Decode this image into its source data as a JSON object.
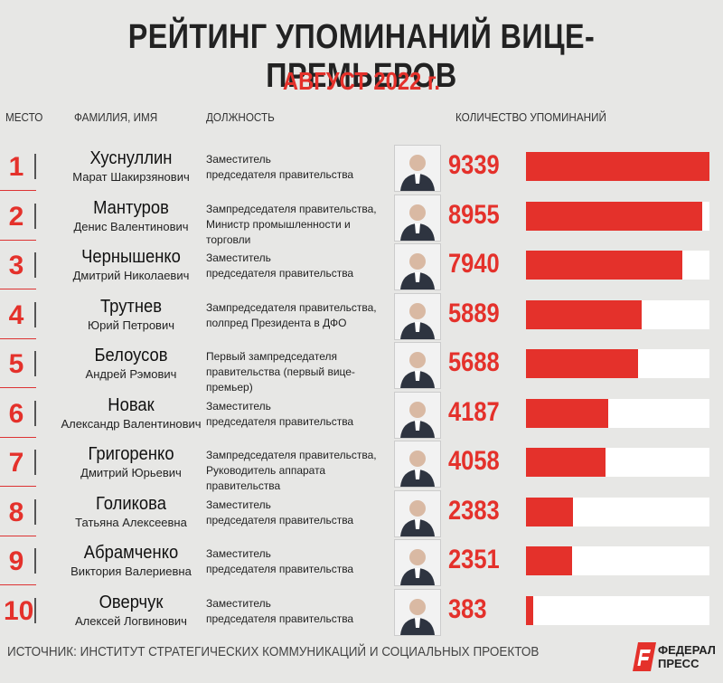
{
  "header": {
    "title": "РЕЙТИНГ УПОМИНАНИЙ ВИЦЕ-ПРЕМЬЕРОВ",
    "subtitle": "АВГУСТ 2022 г."
  },
  "columns": {
    "rank": "МЕСТО",
    "name": "ФАМИЛИЯ, ИМЯ",
    "position": "ДОЛЖНОСТЬ",
    "count": "КОЛИЧЕСТВО УПОМИНАНИЙ"
  },
  "colors": {
    "accent": "#e4312b",
    "background": "#e7e7e5",
    "bar_track": "#ffffff"
  },
  "chart_data": {
    "type": "bar",
    "orientation": "horizontal",
    "title": "РЕЙТИНГ УПОМИНАНИЙ ВИЦЕ-ПРЕМЬЕРОВ",
    "subtitle": "АВГУСТ 2022 г.",
    "xlabel": "КОЛИЧЕСТВО УПОМИНАНИЙ",
    "xlim": [
      0,
      9339
    ],
    "rows": [
      {
        "rank": "1",
        "surname": "Хуснуллин",
        "fullname": "Марат Шакирзянович",
        "position": [
          "Заместитель",
          "председателя правительства"
        ],
        "value": 9339
      },
      {
        "rank": "2",
        "surname": "Мантуров",
        "fullname": "Денис Валентинович",
        "position": [
          "Зампредседателя правительства,",
          "Министр промышленности и торговли"
        ],
        "value": 8955
      },
      {
        "rank": "3",
        "surname": "Чернышенко",
        "fullname": "Дмитрий Николаевич",
        "position": [
          "Заместитель",
          "председателя правительства"
        ],
        "value": 7940
      },
      {
        "rank": "4",
        "surname": "Трутнев",
        "fullname": "Юрий Петрович",
        "position": [
          "Зампредседателя правительства,",
          "полпред Президента в ДФО"
        ],
        "value": 5889
      },
      {
        "rank": "5",
        "surname": "Белоусов",
        "fullname": "Андрей Рэмович",
        "position": [
          "Первый зампредседателя",
          "правительства (первый вице-премьер)"
        ],
        "value": 5688
      },
      {
        "rank": "6",
        "surname": "Новак",
        "fullname": "Александр Валентинович",
        "position": [
          "Заместитель",
          "председателя правительства"
        ],
        "value": 4187
      },
      {
        "rank": "7",
        "surname": "Григоренко",
        "fullname": "Дмитрий Юрьевич",
        "position": [
          "Зампредседателя правительства,",
          "Руководитель аппарата правительства"
        ],
        "value": 4058
      },
      {
        "rank": "8",
        "surname": "Голикова",
        "fullname": "Татьяна Алексеевна",
        "position": [
          "Заместитель",
          "председателя правительства"
        ],
        "value": 2383
      },
      {
        "rank": "9",
        "surname": "Абрамченко",
        "fullname": "Виктория Валериевна",
        "position": [
          "Заместитель",
          "председателя правительства"
        ],
        "value": 2351
      },
      {
        "rank": "10",
        "surname": "Оверчук",
        "fullname": "Алексей Логвинович",
        "position": [
          "Заместитель",
          "председателя правительства"
        ],
        "value": 383
      }
    ]
  },
  "footer": {
    "source": "ИСТОЧНИК: ИНСТИТУТ СТРАТЕГИЧЕСКИХ КОММУНИКАЦИЙ И СОЦИАЛЬНЫХ ПРОЕКТОВ",
    "logo_line1": "ФЕДЕРАЛ",
    "logo_line2": "ПРЕСС",
    "logo_icon": "federal-press-logo-icon"
  }
}
